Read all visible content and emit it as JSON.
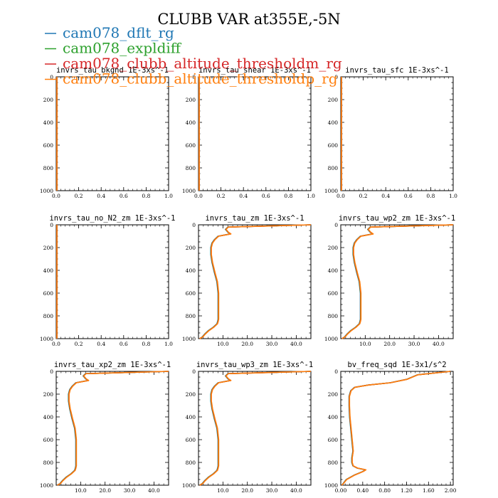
{
  "chart_data": {
    "type": "line",
    "title": "CLUBB VAR at355E,-5N",
    "legend": {
      "placement": "top-left",
      "entries": [
        {
          "name": "cam078_dflt_rg",
          "color": "#1f77b4"
        },
        {
          "name": "cam078_expldiff",
          "color": "#2ca02c"
        },
        {
          "name": "cam078_clubb_altitude_thresholdm_rg",
          "color": "#d62728"
        },
        {
          "name": "cam078_clubb_altitude_thresholdp_rg",
          "color": "#ff7f0e"
        }
      ]
    },
    "y_axis": {
      "label": "",
      "range": [
        1000,
        0
      ],
      "ticks": [
        "0",
        "200",
        "400",
        "600",
        "800",
        "1000"
      ]
    },
    "panels": [
      {
        "title": "invrs_tau_bkgnd   1E-3xs^-1",
        "xlim": [
          0,
          1
        ],
        "xticks": [
          "0.0",
          "0.2",
          "0.4",
          "0.6",
          "0.8",
          "1.0"
        ],
        "profile": "flat"
      },
      {
        "title": "invrs_tau_shear   1E-3xs^-1",
        "xlim": [
          0,
          1
        ],
        "xticks": [
          "0.0",
          "0.2",
          "0.4",
          "0.6",
          "0.8",
          "1.0"
        ],
        "profile": "flat"
      },
      {
        "title": "invrs_tau_sfc   1E-3xs^-1",
        "xlim": [
          0,
          1
        ],
        "xticks": [
          "0.0",
          "0.2",
          "0.4",
          "0.6",
          "0.8",
          "1.0"
        ],
        "profile": "flat"
      },
      {
        "title": "invrs_tau_no_N2_zm   1E-3xs^-1",
        "xlim": [
          0,
          1
        ],
        "xticks": [
          "0.0",
          "0.2",
          "0.4",
          "0.6",
          "0.8",
          "1.0"
        ],
        "profile": "flat"
      },
      {
        "title": "invrs_tau_zm   1E-3xs^-1",
        "xlim": [
          0,
          46
        ],
        "xticks": [
          "10.0",
          "20.0",
          "30.0",
          "40.0"
        ],
        "xtick_values": [
          10,
          20,
          30,
          40
        ],
        "profile": "tau",
        "x": [
          46,
          12,
          11,
          12,
          13,
          8,
          6.5,
          5.5,
          5,
          5,
          5.5,
          6.5,
          7.5,
          8,
          8,
          8,
          8,
          7.8,
          7.5,
          6,
          4,
          2.5,
          1.5,
          0.5
        ],
        "y": [
          0,
          20,
          40,
          65,
          80,
          100,
          130,
          160,
          200,
          260,
          330,
          420,
          500,
          600,
          700,
          800,
          830,
          850,
          870,
          900,
          930,
          960,
          985,
          1000
        ]
      },
      {
        "title": "invrs_tau_wp2_zm   1E-3xs^-1",
        "xlim": [
          0,
          46
        ],
        "xticks": [
          "10.0",
          "20.0",
          "30.0",
          "40.0"
        ],
        "xtick_values": [
          10,
          20,
          30,
          40
        ],
        "profile": "tau",
        "x": [
          46,
          12,
          11,
          12,
          13,
          8,
          6.5,
          5.5,
          5,
          5,
          5.5,
          6.5,
          7.5,
          8,
          8,
          8,
          8,
          7.8,
          7.5,
          6,
          4,
          2.5,
          1.5,
          0.5
        ],
        "y": [
          0,
          20,
          40,
          65,
          80,
          100,
          130,
          160,
          200,
          260,
          330,
          420,
          500,
          600,
          700,
          800,
          830,
          850,
          870,
          900,
          930,
          960,
          985,
          1000
        ]
      },
      {
        "title": "invrs_tau_xp2_zm   1E-3xs^-1",
        "xlim": [
          0,
          46
        ],
        "xticks": [
          "10.0",
          "20.0",
          "30.0",
          "40.0"
        ],
        "xtick_values": [
          10,
          20,
          30,
          40
        ],
        "profile": "tau",
        "x": [
          46,
          12,
          11,
          12,
          13,
          8,
          6.5,
          5.5,
          5,
          5,
          5.5,
          6.5,
          7.5,
          8,
          8,
          8,
          8,
          7.8,
          7.5,
          6,
          4,
          2.5,
          1.5,
          0.5
        ],
        "y": [
          0,
          20,
          40,
          65,
          80,
          100,
          130,
          160,
          200,
          260,
          330,
          420,
          500,
          600,
          700,
          800,
          830,
          850,
          870,
          900,
          930,
          960,
          985,
          1000
        ]
      },
      {
        "title": "invrs_tau_wp3_zm   1E-3xs^-1",
        "xlim": [
          0,
          46
        ],
        "xticks": [
          "10.0",
          "20.0",
          "30.0",
          "40.0"
        ],
        "xtick_values": [
          10,
          20,
          30,
          40
        ],
        "profile": "tau",
        "x": [
          46,
          12,
          11,
          12,
          13,
          8,
          6.5,
          5.5,
          5,
          5,
          5.5,
          6.5,
          7.5,
          8,
          8,
          8,
          8,
          7.8,
          7.5,
          6,
          4,
          2.5,
          1.5,
          0.5
        ],
        "y": [
          0,
          20,
          40,
          65,
          80,
          100,
          130,
          160,
          200,
          260,
          330,
          420,
          500,
          600,
          700,
          800,
          830,
          850,
          870,
          900,
          930,
          960,
          985,
          1000
        ]
      },
      {
        "title": "bv_freq_sqd   1E-3x1/s^2",
        "xlim": [
          0,
          2.05
        ],
        "xticks": [
          "0.00",
          "0.40",
          "0.80",
          "1.20",
          "1.60",
          "2.00"
        ],
        "xtick_values": [
          0,
          0.4,
          0.8,
          1.2,
          1.6,
          2.0
        ],
        "profile": "bv",
        "x": [
          2.0,
          1.4,
          1.2,
          0.9,
          0.5,
          0.25,
          0.18,
          0.15,
          0.15,
          0.16,
          0.18,
          0.2,
          0.22,
          0.2,
          0.2,
          0.22,
          0.3,
          0.45,
          0.4,
          0.25,
          0.1,
          0.05,
          0.02
        ],
        "y": [
          0,
          30,
          70,
          100,
          120,
          140,
          170,
          220,
          300,
          400,
          500,
          600,
          700,
          760,
          800,
          830,
          850,
          865,
          880,
          910,
          950,
          980,
          1000
        ]
      }
    ]
  }
}
